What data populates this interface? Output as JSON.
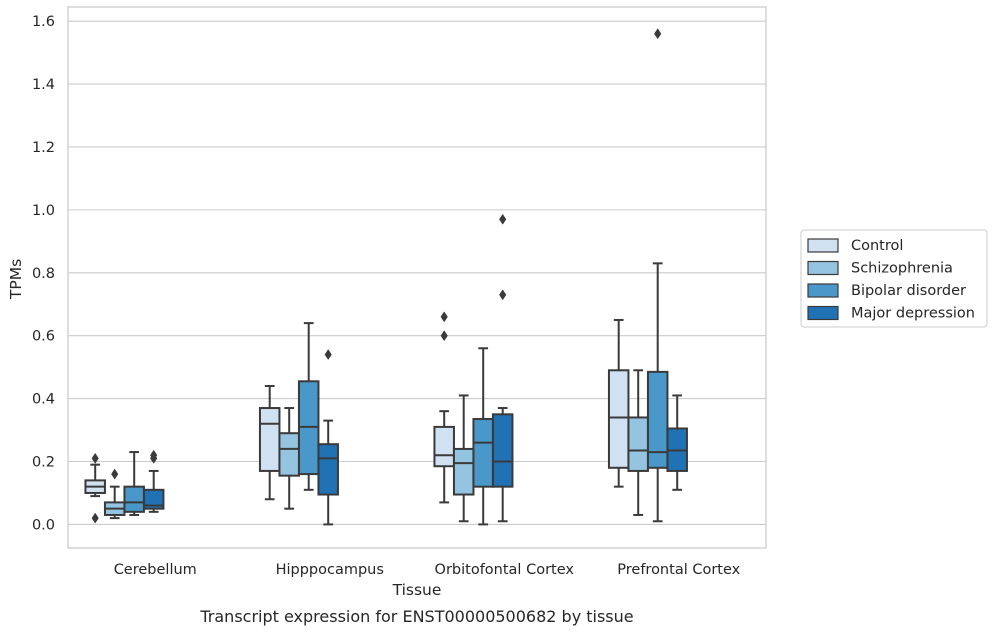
{
  "chart_data": {
    "type": "box",
    "caption": "Transcript expression for ENST00000500682 by tissue",
    "xlabel": "Tissue",
    "ylabel": "TPMs",
    "ylim": [
      -0.075,
      1.645
    ],
    "yticks": [
      0.0,
      0.2,
      0.4,
      0.6,
      0.8,
      1.0,
      1.2,
      1.4,
      1.6
    ],
    "ytick_labels": [
      "0.0",
      "0.2",
      "0.4",
      "0.6",
      "0.8",
      "1.0",
      "1.2",
      "1.4",
      "1.6"
    ],
    "grid": true,
    "legend_position": "right-center",
    "categories": [
      "Cerebellum",
      "Hipppocampus",
      "Orbitofontal Cortex",
      "Prefrontal Cortex"
    ],
    "series": [
      {
        "name": "Control",
        "color": "#d0e1f2",
        "boxes": [
          {
            "whislo": 0.09,
            "q1": 0.1,
            "med": 0.12,
            "q3": 0.14,
            "whishi": 0.19,
            "fliers": [
              0.02,
              0.21
            ]
          },
          {
            "whislo": 0.08,
            "q1": 0.17,
            "med": 0.32,
            "q3": 0.37,
            "whishi": 0.44,
            "fliers": []
          },
          {
            "whislo": 0.07,
            "q1": 0.185,
            "med": 0.22,
            "q3": 0.31,
            "whishi": 0.36,
            "fliers": [
              0.6,
              0.66
            ]
          },
          {
            "whislo": 0.12,
            "q1": 0.18,
            "med": 0.34,
            "q3": 0.49,
            "whishi": 0.65,
            "fliers": []
          }
        ]
      },
      {
        "name": "Schizophrenia",
        "color": "#94c4df",
        "boxes": [
          {
            "whislo": 0.02,
            "q1": 0.03,
            "med": 0.05,
            "q3": 0.07,
            "whishi": 0.12,
            "fliers": [
              0.16
            ]
          },
          {
            "whislo": 0.05,
            "q1": 0.155,
            "med": 0.24,
            "q3": 0.29,
            "whishi": 0.37,
            "fliers": []
          },
          {
            "whislo": 0.01,
            "q1": 0.095,
            "med": 0.195,
            "q3": 0.24,
            "whishi": 0.41,
            "fliers": []
          },
          {
            "whislo": 0.03,
            "q1": 0.17,
            "med": 0.235,
            "q3": 0.34,
            "whishi": 0.49,
            "fliers": []
          }
        ]
      },
      {
        "name": "Bipolar disorder",
        "color": "#4a98c9",
        "boxes": [
          {
            "whislo": 0.03,
            "q1": 0.04,
            "med": 0.07,
            "q3": 0.12,
            "whishi": 0.23,
            "fliers": []
          },
          {
            "whislo": 0.11,
            "q1": 0.16,
            "med": 0.31,
            "q3": 0.455,
            "whishi": 0.64,
            "fliers": []
          },
          {
            "whislo": 0.0,
            "q1": 0.12,
            "med": 0.26,
            "q3": 0.335,
            "whishi": 0.56,
            "fliers": []
          },
          {
            "whislo": 0.01,
            "q1": 0.18,
            "med": 0.23,
            "q3": 0.485,
            "whishi": 0.83,
            "fliers": [
              1.56
            ]
          }
        ]
      },
      {
        "name": "Major depression",
        "color": "#2171b5",
        "boxes": [
          {
            "whislo": 0.04,
            "q1": 0.05,
            "med": 0.06,
            "q3": 0.11,
            "whishi": 0.17,
            "fliers": [
              0.21,
              0.22
            ]
          },
          {
            "whislo": 0.0,
            "q1": 0.095,
            "med": 0.21,
            "q3": 0.255,
            "whishi": 0.33,
            "fliers": [
              0.54
            ]
          },
          {
            "whislo": 0.01,
            "q1": 0.12,
            "med": 0.2,
            "q3": 0.35,
            "whishi": 0.37,
            "fliers": [
              0.73,
              0.97
            ]
          },
          {
            "whislo": 0.11,
            "q1": 0.17,
            "med": 0.235,
            "q3": 0.305,
            "whishi": 0.41,
            "fliers": []
          }
        ]
      }
    ]
  },
  "colors": {
    "line": "#3a3a3a",
    "grid": "#cccccc",
    "frame": "#cccccc"
  }
}
